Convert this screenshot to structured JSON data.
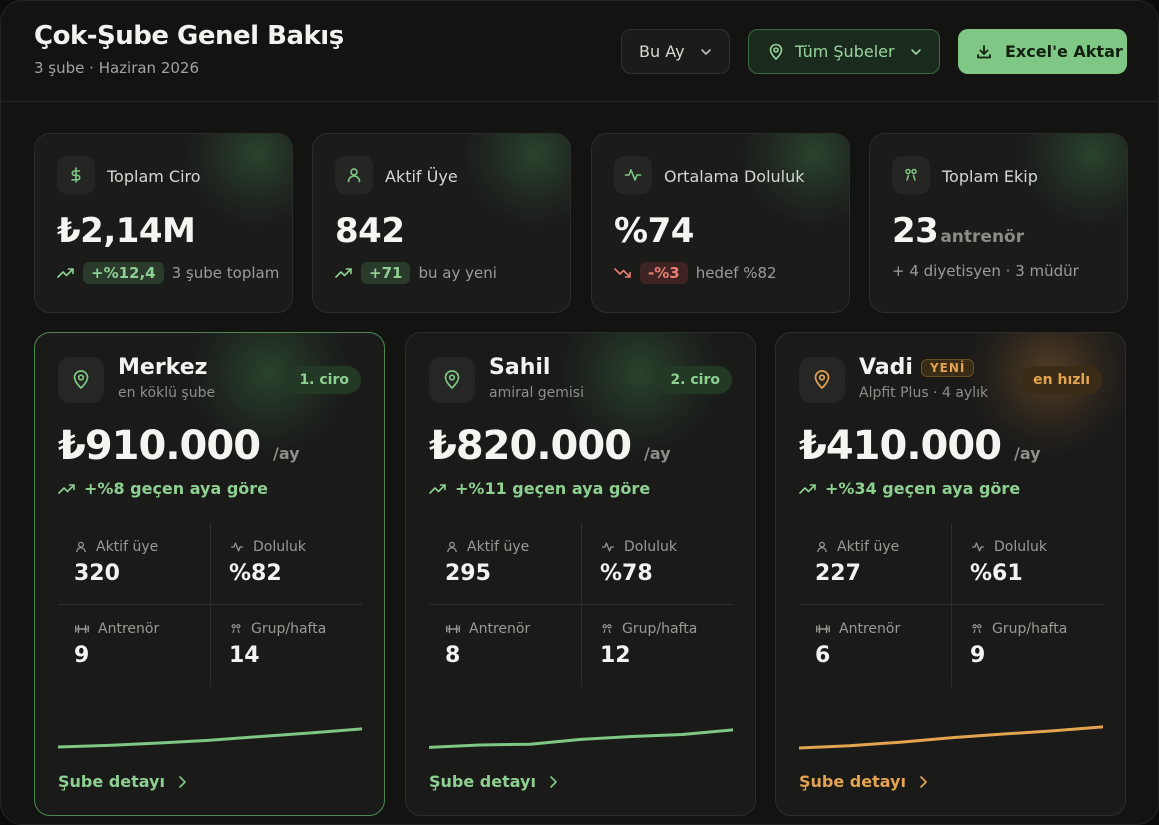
{
  "header": {
    "title": "Çok-Şube Genel Bakış",
    "subtitle": "3 şube · Haziran 2026",
    "period_label": "Bu Ay",
    "branch_filter_label": "Tüm Şubeler",
    "export_label": "Excel'e Aktar"
  },
  "stats": [
    {
      "label": "Toplam Ciro",
      "value": "₺2,14M",
      "badge": "+%12,4",
      "note": "3 şube toplam",
      "trend": "up",
      "icon": "dollar-icon"
    },
    {
      "label": "Aktif Üye",
      "value": "842",
      "badge": "+71",
      "note": "bu ay yeni",
      "trend": "up",
      "icon": "user-icon"
    },
    {
      "label": "Ortalama Doluluk",
      "value": "%74",
      "badge": "-%3",
      "note": "hedef %82",
      "trend": "down",
      "icon": "activity-icon"
    },
    {
      "label": "Toplam Ekip",
      "value": "23",
      "unit": "antrenör",
      "note": "+ 4 diyetisyen · 3 müdür",
      "icon": "team-icon"
    }
  ],
  "metric_labels": {
    "members": "Aktif üye",
    "occupancy": "Doluluk",
    "trainers": "Antrenör",
    "groups": "Grup/hafta"
  },
  "branches": [
    {
      "name": "Merkez",
      "subtitle": "en köklü şube",
      "badge": "1. ciro",
      "revenue": "₺910.000",
      "per": "/ay",
      "growth": "+%8 geçen aya göre",
      "members": "320",
      "occupancy": "%82",
      "trainers": "9",
      "groups": "14",
      "link": "Şube detayı",
      "accent": "#7fc784",
      "spark": [
        0.1,
        0.18,
        0.3,
        0.44,
        0.62,
        0.8,
        1.0
      ]
    },
    {
      "name": "Sahil",
      "subtitle": "amiral gemisi",
      "badge": "2. ciro",
      "revenue": "₺820.000",
      "per": "/ay",
      "growth": "+%11 geçen aya göre",
      "members": "295",
      "occupancy": "%78",
      "trainers": "8",
      "groups": "12",
      "link": "Şube detayı",
      "accent": "#7fc784",
      "spark": [
        0.08,
        0.2,
        0.24,
        0.48,
        0.62,
        0.72,
        0.95
      ]
    },
    {
      "name": "Vadi",
      "new_tag": "YENİ",
      "subtitle": "Alpfit Plus · 4 aylık",
      "badge": "en hızlı",
      "revenue": "₺410.000",
      "per": "/ay",
      "growth": "+%34 geçen aya göre",
      "members": "227",
      "occupancy": "%61",
      "trainers": "6",
      "groups": "9",
      "link": "Şube detayı",
      "accent": "#e3a34f",
      "spark": [
        0.05,
        0.16,
        0.34,
        0.56,
        0.74,
        0.9,
        1.1
      ]
    }
  ]
}
